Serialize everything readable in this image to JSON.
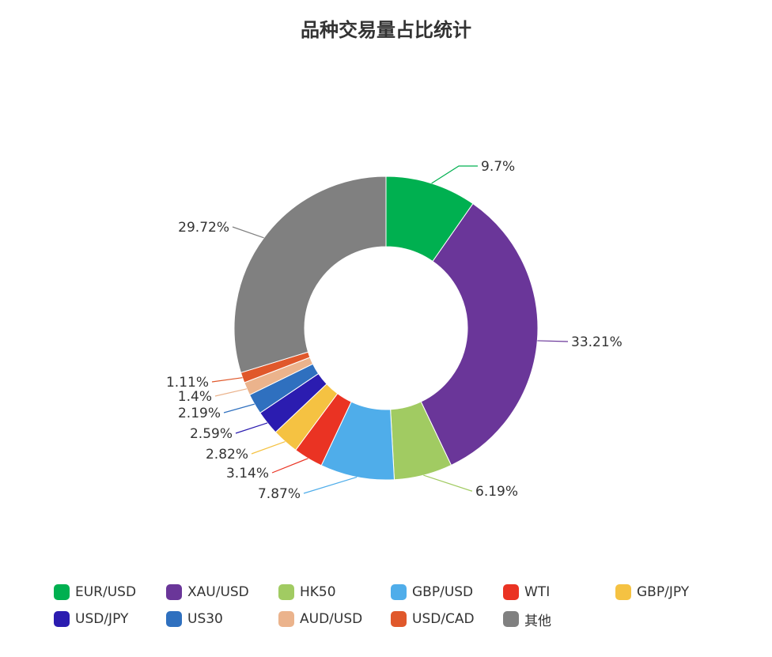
{
  "chart_data": {
    "type": "pie",
    "variant": "donut",
    "title": "品种交易量占比统计",
    "labels": [
      "EUR/USD",
      "XAU/USD",
      "HK50",
      "GBP/USD",
      "WTI",
      "GBP/JPY",
      "USD/JPY",
      "US30",
      "AUD/USD",
      "USD/CAD",
      "其他"
    ],
    "values": [
      9.7,
      33.21,
      6.19,
      7.87,
      3.14,
      2.82,
      2.59,
      2.19,
      1.4,
      1.11,
      29.72
    ],
    "value_labels": [
      "9.7%",
      "33.21%",
      "6.19%",
      "7.87%",
      "3.14%",
      "2.82%",
      "2.59%",
      "2.19%",
      "1.4%",
      "1.11%",
      "29.72%"
    ],
    "colors": [
      "#00b050",
      "#6a3699",
      "#a1cb62",
      "#4fadea",
      "#ea3323",
      "#f5c242",
      "#2b1cb0",
      "#2f70bf",
      "#ebb38c",
      "#e0582b",
      "#808080"
    ],
    "legend_position": "bottom"
  }
}
